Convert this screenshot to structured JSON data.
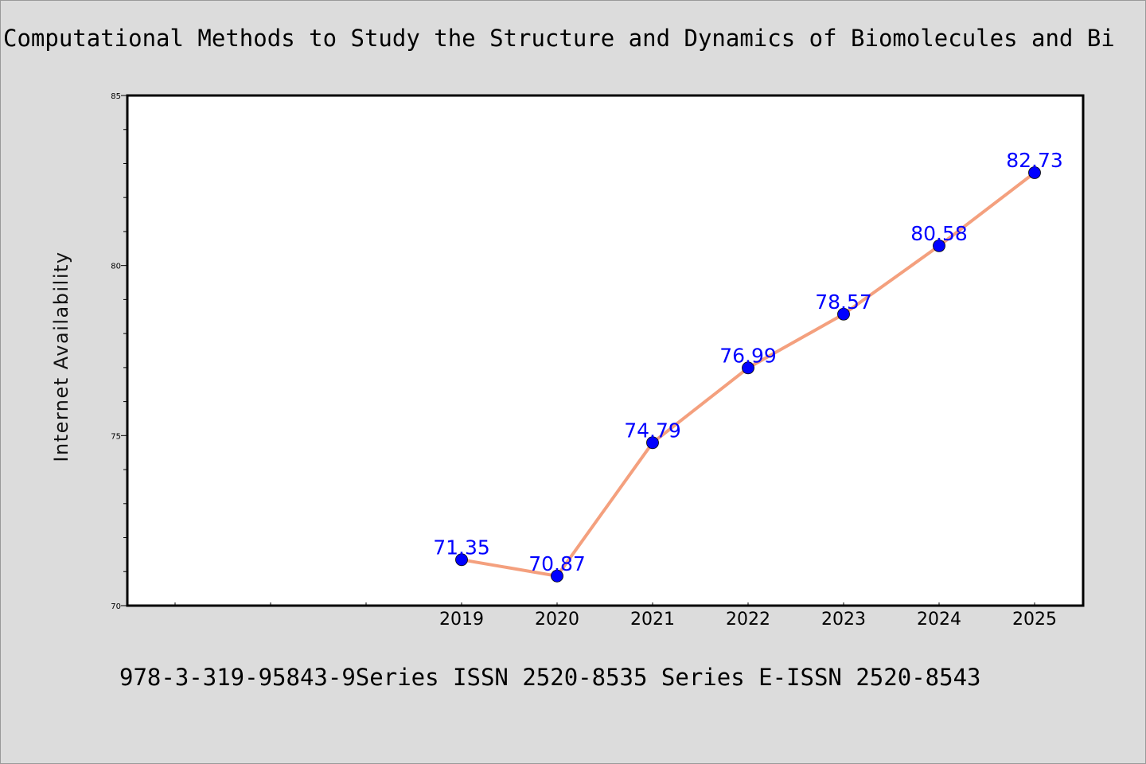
{
  "title": "Computational Methods to Study the Structure and Dynamics of Biomolecules and Bi",
  "footer": "978-3-319-95843-9Series ISSN 2520-8535 Series E-ISSN 2520-8543",
  "chart_data": {
    "type": "line",
    "title": "Computational Methods to Study the Structure and Dynamics of Biomolecules and Bi",
    "xlabel": "",
    "ylabel": "Internet Availability",
    "categories": [
      "2019",
      "2020",
      "2021",
      "2022",
      "2023",
      "2024",
      "2025"
    ],
    "values": [
      71.35,
      70.87,
      74.79,
      76.99,
      78.57,
      80.58,
      82.73
    ],
    "data_labels": [
      "71.35",
      "70.87",
      "74.79",
      "76.99",
      "78.57",
      "80.58",
      "82.73"
    ],
    "ylim": [
      70,
      85
    ],
    "yticks": [
      "70",
      "75",
      "80",
      "85"
    ],
    "grid": false,
    "line_color": "#f4a07e",
    "marker_color": "#0000ff",
    "label_color": "#0000ff"
  }
}
